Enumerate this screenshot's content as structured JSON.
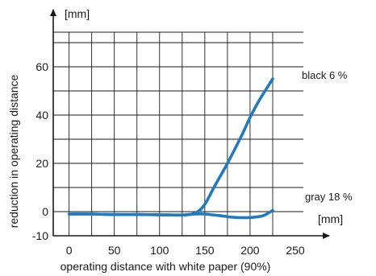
{
  "chart_data": {
    "type": "line",
    "title": "",
    "xlabel": "operating distance with white paper (90%)",
    "ylabel": "reduction in operating distance",
    "x_unit": "[mm]",
    "y_unit": "[mm]",
    "xlim": [
      -5,
      250
    ],
    "ylim": [
      -10,
      70
    ],
    "x_ticks": [
      0,
      50,
      100,
      150,
      200,
      250
    ],
    "x_tick_labels": [
      "0",
      "50",
      "100",
      "150",
      "200",
      "250"
    ],
    "y_ticks": [
      -10,
      0,
      20,
      40,
      60
    ],
    "y_tick_labels": [
      "-10",
      "0",
      "20",
      "40",
      "60"
    ],
    "grid": true,
    "series_color": "#1f7ac0",
    "series": [
      {
        "name": "black 6 %",
        "x": [
          0,
          25,
          50,
          75,
          100,
          125,
          140,
          150,
          160,
          175,
          190,
          200,
          210,
          225
        ],
        "y": [
          -1,
          -1,
          -1.2,
          -1.2,
          -1.3,
          -1.4,
          -0.5,
          3,
          10,
          20,
          31,
          39,
          46,
          55
        ]
      },
      {
        "name": "gray 18 %",
        "x": [
          0,
          25,
          50,
          75,
          100,
          125,
          140,
          150,
          165,
          180,
          195,
          205,
          215,
          225
        ],
        "y": [
          -1,
          -1,
          -1.2,
          -1.2,
          -1.3,
          -1.4,
          -1,
          -1,
          -1.6,
          -2.3,
          -2.5,
          -2.3,
          -1.6,
          0.5
        ]
      }
    ]
  }
}
